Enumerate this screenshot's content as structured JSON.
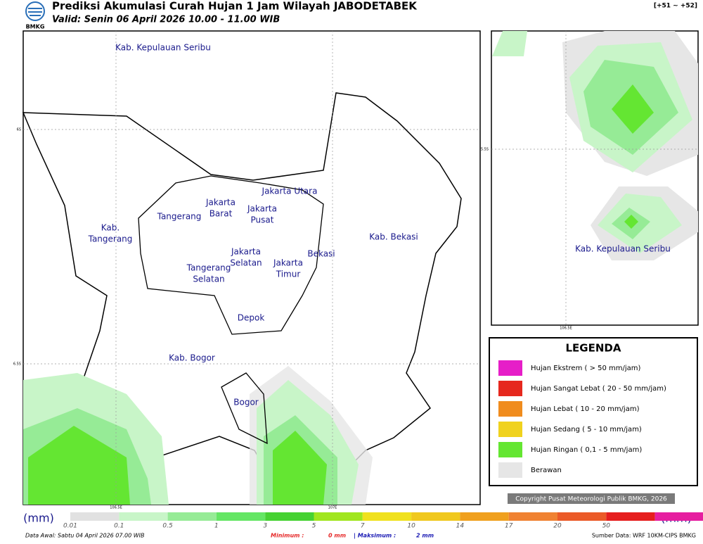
{
  "header": {
    "title": "Prediksi Akumulasi Curah Hujan 1 Jam Wilayah JABODETABEK",
    "valid": "Valid: Senin 06 April 2026 10.00 - 11.00 WIB",
    "logo": "BMKG",
    "range": "[+51 ~ +52]"
  },
  "map": {
    "regions": [
      [
        "Kab. Kepulauan Seribu"
      ],
      [
        "Jakarta Utara"
      ],
      [
        "Jakarta",
        "Barat"
      ],
      [
        "Jakarta",
        "Pusat"
      ],
      [
        "Tangerang"
      ],
      [
        "Kab.",
        "Tangerang"
      ],
      [
        "Kab. Bekasi"
      ],
      [
        "Jakarta",
        "Selatan"
      ],
      [
        "Bekasi"
      ],
      [
        "Jakarta",
        "Timur"
      ],
      [
        "Tangerang",
        "Selatan"
      ],
      [
        "Depok"
      ],
      [
        "Kab. Bogor"
      ],
      [
        "Bogor"
      ]
    ],
    "lat_labels": [
      "6S",
      "6.5S"
    ],
    "lon_labels": [
      "106.5E",
      "107E"
    ]
  },
  "inset": {
    "label": "Kab. Kepulauan Seribu",
    "lat_label": "5.5S",
    "lon_label": "106.5E"
  },
  "legend": {
    "title": "LEGENDA",
    "items": [
      {
        "label": "Hujan Ekstrem ( > 50 mm/jam)",
        "color": "#e61ec8"
      },
      {
        "label": "Hujan Sangat Lebat ( 20 - 50 mm/jam)",
        "color": "#e6281e"
      },
      {
        "label": "Hujan Lebat ( 10 - 20 mm/jam)",
        "color": "#f08c1e"
      },
      {
        "label": "Hujan Sedang ( 5 - 10 mm/jam)",
        "color": "#f0d21e"
      },
      {
        "label": "Hujan Ringan ( 0,1 - 5 mm/jam)",
        "color": "#64e632"
      },
      {
        "label": "Berawan",
        "color": "#e6e6e6"
      }
    ]
  },
  "copyright": "Copyright Pusat Meteorologi Publik BMKG, 2026",
  "scale": {
    "unit": "(mm)",
    "labels": [
      "0.01",
      "0.1",
      "0.5",
      "1",
      "3",
      "5",
      "7",
      "10",
      "14",
      "17",
      "20",
      "50"
    ],
    "colors": [
      "#e1e1e1",
      "#c8f5c8",
      "#96eb96",
      "#64e664",
      "#46d232",
      "#a0e61e",
      "#f0e11e",
      "#f0c81e",
      "#f0a01e",
      "#f08232",
      "#eb5a28",
      "#e61e1e",
      "#e61ea0"
    ]
  },
  "footer": {
    "data_awal": "Data Awal: Sabtu 04 April 2026 07.00 WIB",
    "min_label": "Minimum :",
    "min_value": "0 mm",
    "max_label": "| Maksimum :",
    "max_value": "2 mm",
    "source": "Sumber Data: WRF 10KM-CIPS BMKG"
  }
}
